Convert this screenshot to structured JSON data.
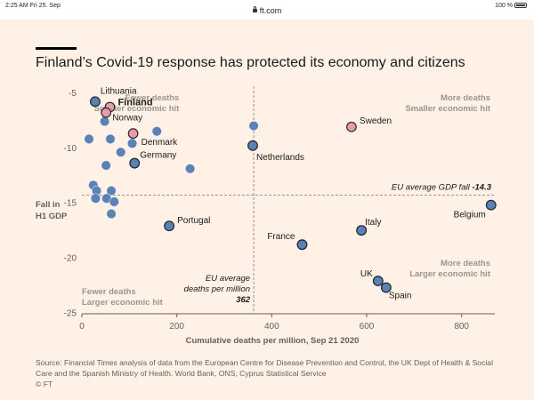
{
  "status_bar": {
    "time": "2:25 AM   Fri 25. Sep",
    "url": "ft.com",
    "battery": "100 %"
  },
  "title": "Finland’s Covid-19 response has protected its economy and citizens",
  "source": "Source: Financial Times analysis of data from the European Centre for Disease Prevention and Control, the UK Dept of Health & Social Care and the Spanish Ministry of Health. World Bank, ONS, Cyprus Statistical Service",
  "copyright": "© FT",
  "chart_data": {
    "type": "scatter",
    "title": "Finland’s Covid-19 response has protected its economy and citizens",
    "xlabel": "Cumulative deaths per million, Sep 21 2020",
    "ylabel": [
      "Fall in",
      "H1 GDP"
    ],
    "xlim": [
      0,
      870
    ],
    "ylim": [
      -25,
      -4
    ],
    "xticks": [
      0,
      200,
      400,
      600,
      800
    ],
    "yticks": [
      -5,
      -10,
      -15,
      -20,
      -25
    ],
    "grid": false,
    "colors": {
      "default": "#5b82b5",
      "highlight": "#e99aa6",
      "outline": "#262a33"
    },
    "eu_average_deaths": 362,
    "eu_average_gdp": -14.3,
    "eu_gdp_label": "EU average GDP fall",
    "eu_gdp_value": "-14.3",
    "eu_deaths_label": [
      "EU average",
      "deaths per million"
    ],
    "eu_deaths_value": "362",
    "quadrants": {
      "top_left": [
        "Fewer deaths",
        "Smaller economic hit"
      ],
      "top_right": [
        "More deaths",
        "Smaller economic hit"
      ],
      "bottom_left": [
        "Fewer deaths",
        "Larger economic hit"
      ],
      "bottom_right": [
        "More deaths",
        "Larger economic hit"
      ]
    },
    "points": [
      {
        "x": 28,
        "y": -5.8,
        "name": "Lithuania",
        "style": "outlined"
      },
      {
        "x": 59,
        "y": -6.3,
        "name": "Finland",
        "style": "highlight"
      },
      {
        "x": 51,
        "y": -6.8,
        "name": "Norway",
        "style": "highlight"
      },
      {
        "x": 108,
        "y": -8.7,
        "name": "Denmark",
        "style": "highlight"
      },
      {
        "x": 568,
        "y": -8.1,
        "name": "Sweden",
        "style": "highlight"
      },
      {
        "x": 360,
        "y": -9.8,
        "name": "Netherlands",
        "style": "outlined"
      },
      {
        "x": 111,
        "y": -11.4,
        "name": "Germany",
        "style": "outlined"
      },
      {
        "x": 184,
        "y": -17.1,
        "name": "Portugal",
        "style": "outlined"
      },
      {
        "x": 464,
        "y": -18.8,
        "name": "France",
        "style": "outlined"
      },
      {
        "x": 589,
        "y": -17.5,
        "name": "Italy",
        "style": "outlined"
      },
      {
        "x": 862,
        "y": -15.2,
        "name": "Belgium",
        "style": "outlined"
      },
      {
        "x": 624,
        "y": -22.1,
        "name": "UK",
        "style": "outlined"
      },
      {
        "x": 641,
        "y": -22.7,
        "name": "Spain",
        "style": "outlined"
      },
      {
        "x": 48,
        "y": -7.6,
        "style": "default"
      },
      {
        "x": 15,
        "y": -9.2,
        "style": "default"
      },
      {
        "x": 60,
        "y": -9.2,
        "style": "default"
      },
      {
        "x": 106,
        "y": -9.6,
        "style": "default"
      },
      {
        "x": 158,
        "y": -8.5,
        "style": "default"
      },
      {
        "x": 362,
        "y": -8.0,
        "style": "default"
      },
      {
        "x": 82,
        "y": -10.4,
        "style": "default"
      },
      {
        "x": 51,
        "y": -11.6,
        "style": "default"
      },
      {
        "x": 228,
        "y": -11.9,
        "style": "default"
      },
      {
        "x": 24,
        "y": -13.4,
        "style": "default"
      },
      {
        "x": 31,
        "y": -13.9,
        "style": "default"
      },
      {
        "x": 62,
        "y": -13.9,
        "style": "default"
      },
      {
        "x": 29,
        "y": -14.6,
        "style": "default"
      },
      {
        "x": 52,
        "y": -14.6,
        "style": "default"
      },
      {
        "x": 68,
        "y": -14.9,
        "style": "default"
      },
      {
        "x": 62,
        "y": -16.0,
        "style": "default"
      }
    ]
  }
}
